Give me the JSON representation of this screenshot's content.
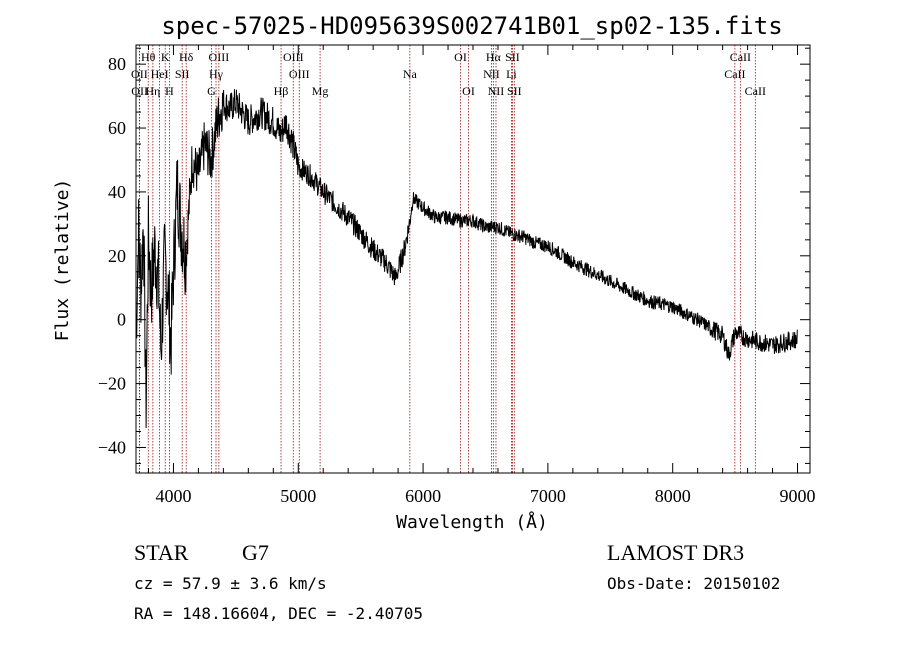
{
  "chart_data": {
    "type": "line",
    "title": "spec-57025-HD095639S002741B01_sp02-135.fits",
    "xlabel": "Wavelength (Å)",
    "ylabel": "Flux (relative)",
    "xlim": [
      3700,
      9100
    ],
    "ylim": [
      -48,
      86
    ],
    "xticks": [
      4000,
      5000,
      6000,
      7000,
      8000,
      9000
    ],
    "yticks": [
      -40,
      -20,
      0,
      20,
      40,
      60,
      80
    ],
    "spectrum_anchors": [
      [
        3700,
        -5
      ],
      [
        3720,
        28
      ],
      [
        3740,
        10
      ],
      [
        3760,
        32
      ],
      [
        3780,
        -28
      ],
      [
        3800,
        28
      ],
      [
        3820,
        8
      ],
      [
        3850,
        22
      ],
      [
        3880,
        12
      ],
      [
        3900,
        -10
      ],
      [
        3930,
        20
      ],
      [
        3960,
        8
      ],
      [
        3980,
        -8
      ],
      [
        4000,
        15
      ],
      [
        4030,
        42
      ],
      [
        4060,
        30
      ],
      [
        4100,
        20
      ],
      [
        4150,
        50
      ],
      [
        4200,
        45
      ],
      [
        4250,
        55
      ],
      [
        4300,
        50
      ],
      [
        4350,
        62
      ],
      [
        4400,
        68
      ],
      [
        4450,
        66
      ],
      [
        4500,
        68
      ],
      [
        4600,
        62
      ],
      [
        4700,
        65
      ],
      [
        4800,
        62
      ],
      [
        4860,
        58
      ],
      [
        4900,
        62
      ],
      [
        4950,
        56
      ],
      [
        5000,
        48
      ],
      [
        5100,
        45
      ],
      [
        5200,
        40
      ],
      [
        5300,
        36
      ],
      [
        5400,
        32
      ],
      [
        5500,
        27
      ],
      [
        5600,
        22
      ],
      [
        5700,
        18
      ],
      [
        5780,
        13
      ],
      [
        5850,
        22
      ],
      [
        5890,
        30
      ],
      [
        5920,
        38
      ],
      [
        6000,
        35
      ],
      [
        6100,
        32
      ],
      [
        6200,
        32
      ],
      [
        6300,
        31
      ],
      [
        6400,
        31
      ],
      [
        6500,
        29
      ],
      [
        6600,
        29
      ],
      [
        6700,
        27
      ],
      [
        6800,
        26
      ],
      [
        6900,
        24
      ],
      [
        7000,
        23
      ],
      [
        7200,
        18
      ],
      [
        7400,
        14
      ],
      [
        7600,
        10
      ],
      [
        7800,
        6
      ],
      [
        8000,
        4
      ],
      [
        8200,
        0
      ],
      [
        8400,
        -5
      ],
      [
        8450,
        -11
      ],
      [
        8500,
        -4
      ],
      [
        8600,
        -6
      ],
      [
        8700,
        -7
      ],
      [
        8800,
        -8
      ],
      [
        8900,
        -7
      ],
      [
        9000,
        -6
      ]
    ],
    "spectral_lines": [
      {
        "label": "Hθ",
        "wavelength": 3798,
        "row": 0
      },
      {
        "label": "OII",
        "wavelength": 3727,
        "row": 1
      },
      {
        "label": "OII",
        "wavelength": 3729,
        "row": 2
      },
      {
        "label": "Hη",
        "wavelength": 3835,
        "row": 2
      },
      {
        "label": "K",
        "wavelength": 3934,
        "row": 0
      },
      {
        "label": "HeI",
        "wavelength": 3889,
        "row": 1
      },
      {
        "label": "H",
        "wavelength": 3968,
        "row": 2
      },
      {
        "label": "SII",
        "wavelength": 4070,
        "row": 1
      },
      {
        "label": "Hδ",
        "wavelength": 4102,
        "row": 0
      },
      {
        "label": "OIII",
        "wavelength": 4364,
        "row": 0
      },
      {
        "label": "Hγ",
        "wavelength": 4341,
        "row": 1
      },
      {
        "label": "G",
        "wavelength": 4305,
        "row": 2
      },
      {
        "label": "Hβ",
        "wavelength": 4862,
        "row": 2
      },
      {
        "label": "OIII",
        "wavelength": 4960,
        "row": 0
      },
      {
        "label": "OIII",
        "wavelength": 5008,
        "row": 1
      },
      {
        "label": "Mg",
        "wavelength": 5175,
        "row": 2
      },
      {
        "label": "Na",
        "wavelength": 5894,
        "row": 1
      },
      {
        "label": "OI",
        "wavelength": 6300,
        "row": 0
      },
      {
        "label": "OI",
        "wavelength": 6364,
        "row": 2
      },
      {
        "label": "Hα",
        "wavelength": 6563,
        "row": 0
      },
      {
        "label": "NII",
        "wavelength": 6548,
        "row": 1
      },
      {
        "label": "NII",
        "wavelength": 6584,
        "row": 2
      },
      {
        "label": "SII",
        "wavelength": 6716,
        "row": 0
      },
      {
        "label": "Li",
        "wavelength": 6708,
        "row": 1
      },
      {
        "label": "SII",
        "wavelength": 6731,
        "row": 2
      },
      {
        "label": "CaII",
        "wavelength": 8542,
        "row": 0
      },
      {
        "label": "CaII",
        "wavelength": 8498,
        "row": 1
      },
      {
        "label": "CaII",
        "wavelength": 8662,
        "row": 2
      }
    ]
  },
  "info": {
    "class_label": "STAR",
    "subclass_label": "G7",
    "survey": "LAMOST DR3",
    "cz": "cz = 57.9 ± 3.6 km/s",
    "obs_date": "Obs-Date: 20150102",
    "coords": "RA = 148.16604, DEC =  -2.40705"
  },
  "colors": {
    "spectrum": "#000000",
    "marker_lines": "#a01010",
    "axes": "#000000"
  }
}
